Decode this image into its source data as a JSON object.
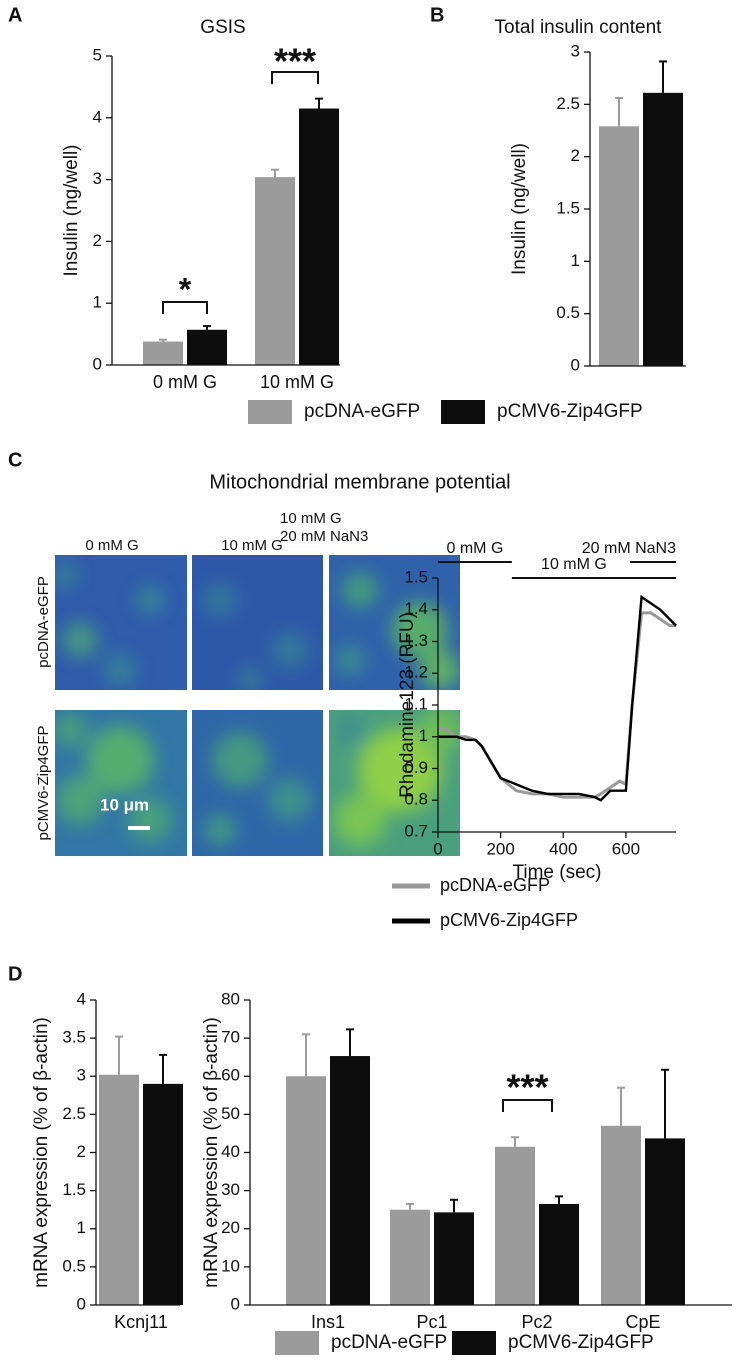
{
  "chart_data": [
    {
      "type": "bar",
      "panel": "A",
      "title": "GSIS",
      "y_label": "Insulin (ng/well)",
      "categories": [
        "0 mM G",
        "10 mM G"
      ],
      "series": [
        {
          "name": "pcDNA-eGFP",
          "color": "#9b9b9b",
          "values": [
            0.38,
            3.04
          ],
          "errors": [
            0.03,
            0.12
          ]
        },
        {
          "name": "pCMV6-Zip4GFP",
          "color": "#0d0d0d",
          "values": [
            0.57,
            4.15
          ],
          "errors": [
            0.06,
            0.16
          ]
        }
      ],
      "ylim": [
        0,
        5
      ],
      "yticks": [
        0,
        1,
        2,
        3,
        4,
        5
      ],
      "annotations": [
        "*",
        "***"
      ]
    },
    {
      "type": "bar",
      "panel": "B",
      "title": "Total insulin content",
      "y_label": "Insulin (ng/well)",
      "categories": [
        null
      ],
      "series": [
        {
          "color": "#9b9b9b",
          "values": [
            2.29
          ],
          "errors": [
            0.27
          ]
        },
        {
          "color": "#0d0d0d",
          "values": [
            2.61
          ],
          "errors": [
            0.3
          ]
        }
      ],
      "ylim": [
        0,
        3
      ],
      "yticks": [
        0,
        0.5,
        1,
        1.5,
        2,
        2.5,
        3
      ]
    },
    {
      "type": "line",
      "x_label": "Time (sec)",
      "y_label": "Rhodamine123 (RFU)",
      "x": [
        0,
        30,
        60,
        90,
        120,
        140,
        170,
        200,
        250,
        300,
        350,
        400,
        450,
        500,
        520,
        550,
        580,
        600,
        620,
        650,
        680,
        710,
        740,
        760
      ],
      "series": [
        {
          "name": "pcDNA-eGFP",
          "color": "#999999",
          "values": [
            1.03,
            1.02,
            1.0,
            1.0,
            0.99,
            0.97,
            0.92,
            0.87,
            0.83,
            0.82,
            0.82,
            0.81,
            0.81,
            0.81,
            0.82,
            0.84,
            0.86,
            0.85,
            1.1,
            1.39,
            1.39,
            1.37,
            1.35,
            1.35
          ]
        },
        {
          "name": "pCMV6-Zip4GFP",
          "color": "#000000",
          "values": [
            1.0,
            1.0,
            1.0,
            0.99,
            0.99,
            0.97,
            0.92,
            0.87,
            0.85,
            0.83,
            0.82,
            0.82,
            0.82,
            0.81,
            0.8,
            0.83,
            0.83,
            0.83,
            1.1,
            1.44,
            1.42,
            1.4,
            1.37,
            1.35
          ]
        }
      ],
      "xlim": [
        0,
        760
      ],
      "xticks": [
        0,
        200,
        400,
        600
      ],
      "ylim": [
        0.7,
        1.5
      ],
      "yticks": [
        0.7,
        0.8,
        0.9,
        1,
        1.1,
        1.2,
        1.3,
        1.4,
        1.5
      ],
      "phases": [
        {
          "label": "0 mM G",
          "start": 0,
          "end": 236
        },
        {
          "label": "10 mM G",
          "start": 236,
          "end": 760
        },
        {
          "label": "20 mM NaN3",
          "start": 613,
          "end": 760
        }
      ]
    },
    {
      "type": "bar",
      "panel": "D",
      "y_label": "mRNA expression (% of β-actin)",
      "categories": [
        "Kcnj11"
      ],
      "series": [
        {
          "color": "#9b9b9b",
          "values": [
            3.02
          ],
          "errors": [
            0.5
          ]
        },
        {
          "color": "#0d0d0d",
          "values": [
            2.9
          ],
          "errors": [
            0.38
          ]
        }
      ],
      "ylim": [
        0,
        4
      ],
      "yticks": [
        0,
        0.5,
        1,
        1.5,
        2,
        2.5,
        3,
        3.5,
        4
      ]
    },
    {
      "type": "bar",
      "y_label": "mRNA expression (% of β-actin)",
      "categories": [
        "Ins1",
        "Pc1",
        "Pc2",
        "CpE"
      ],
      "series": [
        {
          "name": "pcDNA-eGFP",
          "color": "#9b9b9b",
          "values": [
            60,
            25,
            41.5,
            47
          ],
          "errors": [
            11,
            1.5,
            2.5,
            10
          ]
        },
        {
          "name": "pCMV6-Zip4GFP",
          "color": "#0d0d0d",
          "values": [
            65.3,
            24.3,
            26.5,
            43.7
          ],
          "errors": [
            7,
            3.3,
            2,
            18
          ]
        }
      ],
      "ylim": [
        0,
        80
      ],
      "yticks": [
        0,
        10,
        20,
        30,
        40,
        50,
        60,
        70,
        80
      ],
      "annotations": [
        "***"
      ]
    }
  ],
  "image_panel": {
    "panel": "C",
    "title": "Mitochondrial membrane potential",
    "columns": [
      [
        "0 mM G"
      ],
      [
        "10 mM G"
      ],
      [
        "10 mM G",
        "20 mM NaN3"
      ]
    ],
    "rows": [
      "pcDNA-eGFP",
      "pCMV6-Zip4GFP"
    ],
    "scale_bar": "10 μm"
  }
}
